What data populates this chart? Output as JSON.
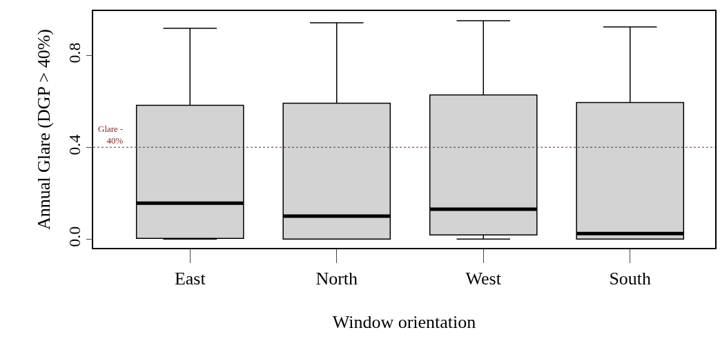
{
  "chart_data": {
    "type": "box",
    "xlabel": "Window orientation",
    "ylabel": "Annual Glare (DGP > 40%)",
    "categories": [
      "East",
      "North",
      "West",
      "South"
    ],
    "boxes": [
      {
        "low": 0,
        "q1": 0.003,
        "median": 0.157,
        "q3": 0.583,
        "high": 0.918
      },
      {
        "low": 0,
        "q1": 0,
        "median": 0.1,
        "q3": 0.592,
        "high": 0.942
      },
      {
        "low": 0,
        "q1": 0.018,
        "median": 0.13,
        "q3": 0.628,
        "high": 0.951
      },
      {
        "low": 0,
        "q1": 0,
        "median": 0.024,
        "q3": 0.595,
        "high": 0.924
      }
    ],
    "color": "#d3d3d3",
    "ylim": [
      -0.038,
      0.993
    ],
    "yticks": [
      {
        "value": 0,
        "label": "0.0"
      },
      0.4,
      0.8
    ],
    "ref_lines": [
      {
        "axis": "y",
        "value": 0.4,
        "label": "Glare -\n40%",
        "color": "#8b1a1a",
        "line_style": "dotted"
      }
    ]
  }
}
